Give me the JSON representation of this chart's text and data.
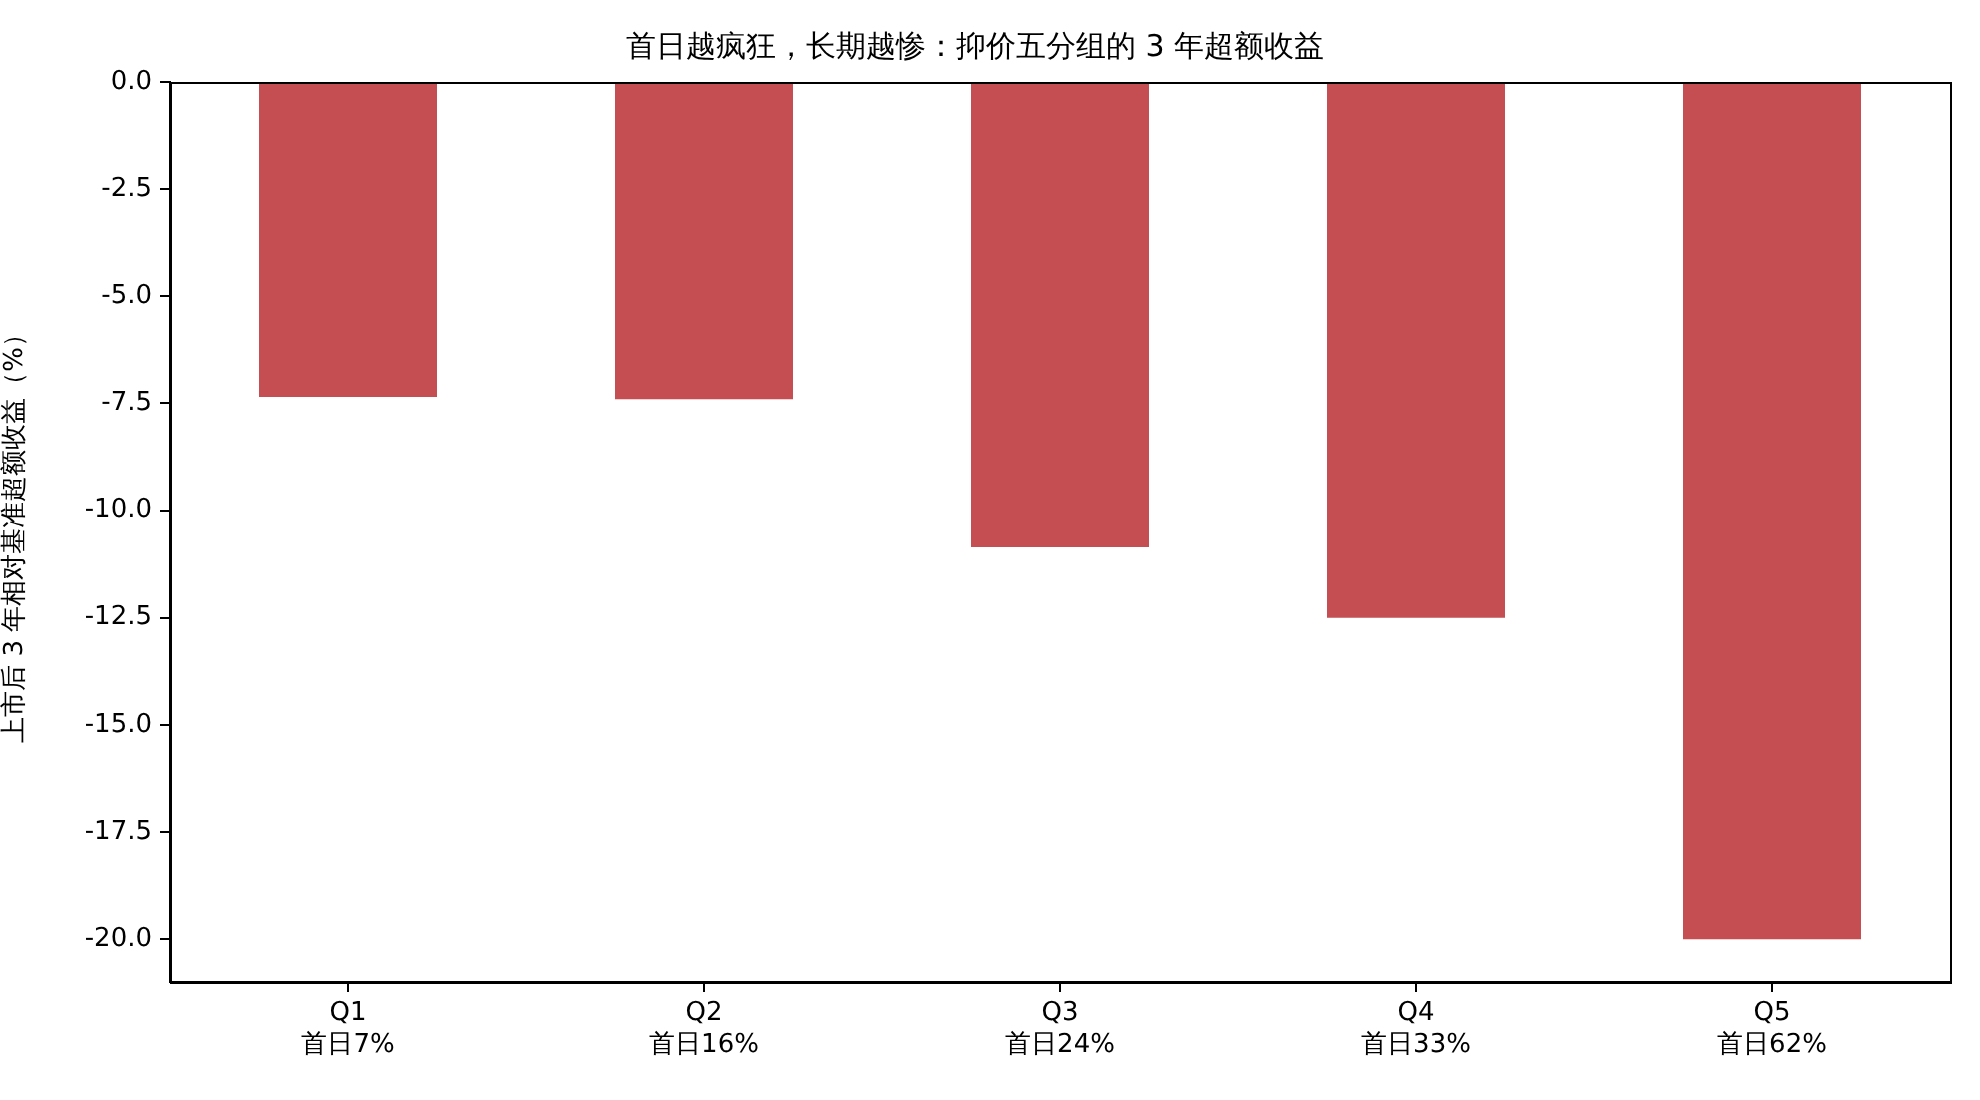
{
  "chart_data": {
    "type": "bar",
    "title": "首日越疯狂，长期越惨：抑价五分组的 3 年超额收益",
    "ylabel": "上市后 3 年相对基准超额收益（%）",
    "categories": [
      "Q1\n首日7%",
      "Q2\n首日16%",
      "Q3\n首日24%",
      "Q4\n首日33%",
      "Q5\n首日62%"
    ],
    "values": [
      -7.35,
      -7.4,
      -10.85,
      -12.5,
      -20.0
    ],
    "color": "#c44e52",
    "ylim": [
      -21,
      0
    ],
    "yticks": [
      {
        "value": 0,
        "label": "0.0"
      },
      -2.5,
      {
        "value": -5,
        "label": "-5.0"
      },
      -7.5,
      {
        "value": -10,
        "label": "-10.0"
      },
      -12.5,
      {
        "value": -15,
        "label": "-15.0"
      },
      -17.5,
      {
        "value": -20,
        "label": "-20.0"
      }
    ]
  }
}
